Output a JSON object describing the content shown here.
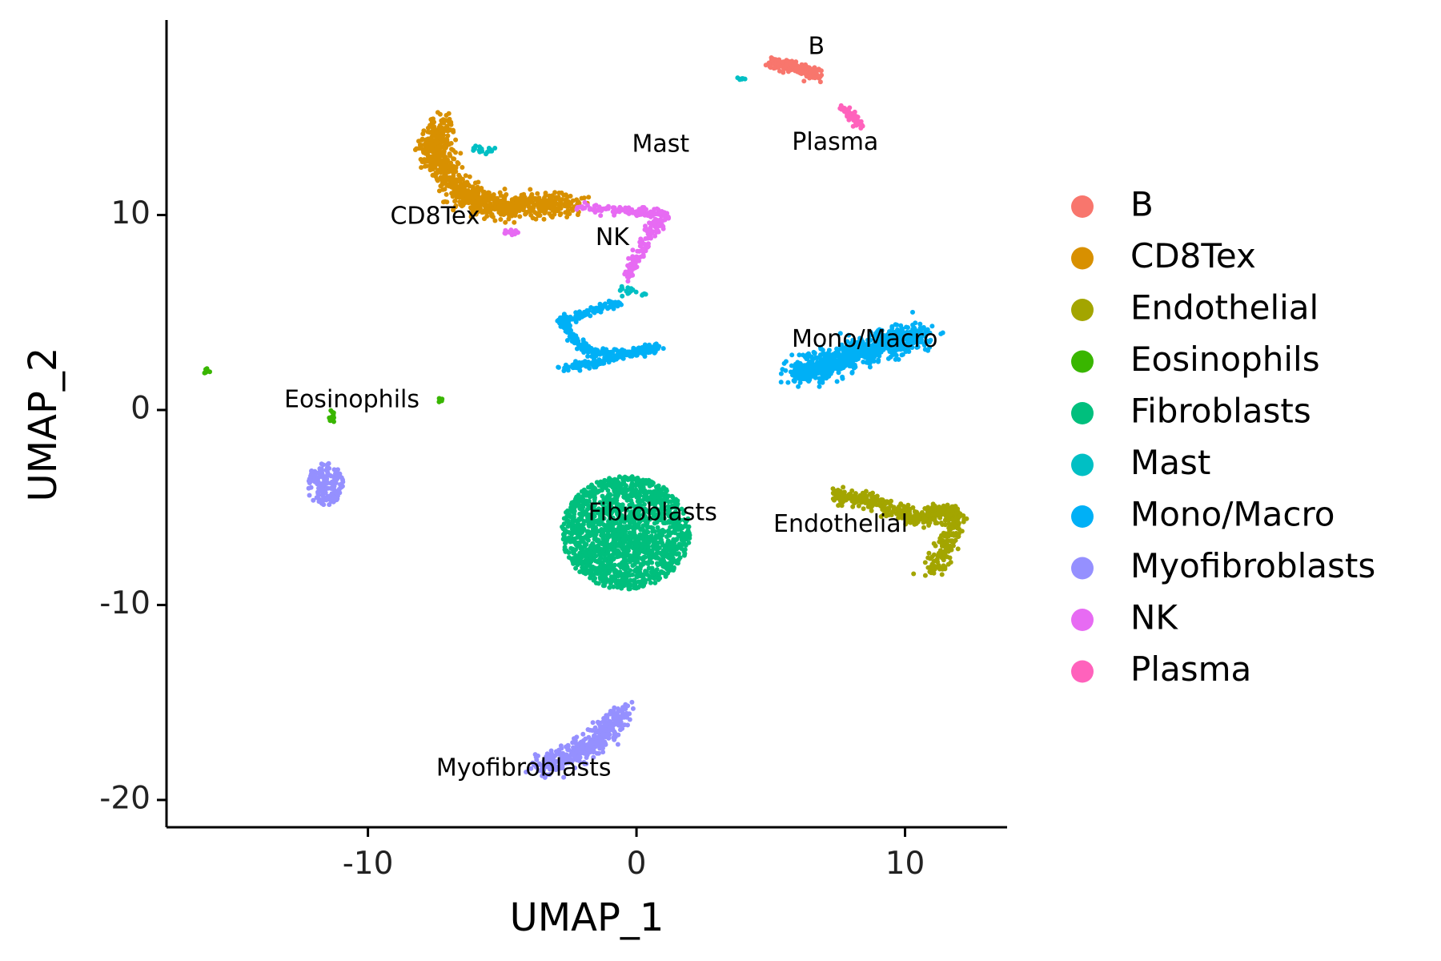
{
  "chart_data": {
    "type": "scatter",
    "title": "",
    "xlabel": "UMAP_1",
    "ylabel": "UMAP_2",
    "xlim": [
      -17.5,
      13.8
    ],
    "ylim": [
      -21.4,
      20.0
    ],
    "xticks": [
      -10,
      0,
      10
    ],
    "yticks": [
      -20,
      -10,
      0,
      10
    ],
    "grid": false,
    "legend_position": "right",
    "series": [
      {
        "name": "B",
        "color": "#F8766D"
      },
      {
        "name": "CD8Tex",
        "color": "#D89000"
      },
      {
        "name": "Endothelial",
        "color": "#A3A500"
      },
      {
        "name": "Eosinophils",
        "color": "#39B600"
      },
      {
        "name": "Fibroblasts",
        "color": "#00BF7D"
      },
      {
        "name": "Mast",
        "color": "#00BFC4"
      },
      {
        "name": "Mono/Macro",
        "color": "#00B0F6"
      },
      {
        "name": "Myofibroblasts",
        "color": "#9590FF"
      },
      {
        "name": "NK",
        "color": "#E76BF3"
      },
      {
        "name": "Plasma",
        "color": "#FF62BC"
      }
    ],
    "clusters": [
      {
        "series": "Fibroblasts",
        "shape": "ellipse",
        "cx": -0.4,
        "cy": -6.3,
        "rx": 2.4,
        "ry": 2.9,
        "n": 1600
      },
      {
        "series": "Myofibroblasts",
        "shape": "path",
        "points": [
          [
            -0.6,
            -15.5
          ],
          [
            -1.2,
            -16.7
          ],
          [
            -2.3,
            -17.6
          ],
          [
            -3.6,
            -18.4
          ]
        ],
        "spread": 0.55,
        "n": 420
      },
      {
        "series": "Myofibroblasts",
        "shape": "ellipse",
        "cx": -11.6,
        "cy": -3.8,
        "rx": 0.7,
        "ry": 1.1,
        "n": 160
      },
      {
        "series": "Eosinophils",
        "shape": "path",
        "points": [
          [
            -11.3,
            -0.1
          ],
          [
            -11.4,
            -0.6
          ]
        ],
        "spread": 0.12,
        "n": 16
      },
      {
        "series": "Eosinophils",
        "shape": "ellipse",
        "cx": -16.0,
        "cy": 2.0,
        "rx": 0.14,
        "ry": 0.18,
        "n": 8
      },
      {
        "series": "Eosinophils",
        "shape": "ellipse",
        "cx": -7.3,
        "cy": 0.5,
        "rx": 0.14,
        "ry": 0.1,
        "n": 6
      },
      {
        "series": "Mono/Macro",
        "shape": "path",
        "points": [
          [
            6.0,
            1.9
          ],
          [
            7.5,
            2.5
          ],
          [
            9.0,
            3.3
          ],
          [
            10.6,
            3.8
          ]
        ],
        "spread": 0.65,
        "n": 900
      },
      {
        "series": "Mono/Macro",
        "shape": "path",
        "points": [
          [
            -2.7,
            2.2
          ],
          [
            -1.5,
            2.4
          ],
          [
            -0.5,
            2.8
          ],
          [
            0.8,
            3.2
          ],
          [
            0.0,
            3.0
          ],
          [
            -1.7,
            2.9
          ],
          [
            -2.3,
            3.6
          ],
          [
            -2.8,
            4.6
          ],
          [
            -1.8,
            5.0
          ],
          [
            -0.6,
            5.5
          ]
        ],
        "spread": 0.22,
        "n": 400
      },
      {
        "series": "Endothelial",
        "shape": "path",
        "points": [
          [
            7.5,
            -4.4
          ],
          [
            8.6,
            -4.6
          ],
          [
            9.8,
            -5.3
          ],
          [
            10.7,
            -5.6
          ],
          [
            11.4,
            -5.2
          ],
          [
            11.9,
            -5.3
          ],
          [
            11.6,
            -6.8
          ],
          [
            11.0,
            -8.4
          ]
        ],
        "spread": 0.4,
        "n": 520
      },
      {
        "series": "CD8Tex",
        "shape": "path",
        "points": [
          [
            -7.2,
            14.8
          ],
          [
            -7.6,
            13.6
          ],
          [
            -7.3,
            12.5
          ],
          [
            -6.6,
            11.3
          ],
          [
            -5.8,
            10.6
          ],
          [
            -4.8,
            10.4
          ],
          [
            -3.6,
            10.5
          ],
          [
            -2.5,
            10.6
          ]
        ],
        "spread": 0.6,
        "n": 900
      },
      {
        "series": "NK",
        "shape": "path",
        "points": [
          [
            -2.2,
            10.4
          ],
          [
            -1.0,
            10.3
          ],
          [
            0.2,
            10.2
          ],
          [
            1.1,
            10.0
          ],
          [
            0.6,
            9.3
          ],
          [
            0.3,
            8.3
          ],
          [
            -0.2,
            7.4
          ],
          [
            -0.3,
            6.8
          ]
        ],
        "spread": 0.25,
        "n": 240
      },
      {
        "series": "NK",
        "shape": "ellipse",
        "cx": -4.7,
        "cy": 9.1,
        "rx": 0.3,
        "ry": 0.15,
        "n": 12
      },
      {
        "series": "Mast",
        "shape": "path",
        "points": [
          [
            -6.2,
            13.5
          ],
          [
            -5.3,
            13.2
          ]
        ],
        "spread": 0.15,
        "n": 20
      },
      {
        "series": "Mast",
        "shape": "path",
        "points": [
          [
            -0.6,
            6.2
          ],
          [
            0.3,
            5.9
          ]
        ],
        "spread": 0.2,
        "n": 18
      },
      {
        "series": "Mast",
        "shape": "ellipse",
        "cx": 3.9,
        "cy": 17.0,
        "rx": 0.15,
        "ry": 0.12,
        "n": 6
      },
      {
        "series": "B",
        "shape": "path",
        "points": [
          [
            5.0,
            17.8
          ],
          [
            6.0,
            17.6
          ],
          [
            6.7,
            17.1
          ]
        ],
        "spread": 0.28,
        "n": 200
      },
      {
        "series": "Plasma",
        "shape": "path",
        "points": [
          [
            7.6,
            15.6
          ],
          [
            8.0,
            15.1
          ],
          [
            8.3,
            14.6
          ]
        ],
        "spread": 0.2,
        "n": 50
      }
    ],
    "annotations": [
      {
        "text": "B",
        "x": 6.7,
        "y": 18.6
      },
      {
        "text": "Mast",
        "x": 0.9,
        "y": 13.6
      },
      {
        "text": "Plasma",
        "x": 7.4,
        "y": 13.7
      },
      {
        "text": "CD8Tex",
        "x": -7.5,
        "y": 9.9
      },
      {
        "text": "NK",
        "x": -0.9,
        "y": 8.8
      },
      {
        "text": "Mono/Macro",
        "x": 8.5,
        "y": 3.6
      },
      {
        "text": "Eosinophils",
        "x": -10.6,
        "y": 0.5
      },
      {
        "text": "Fibroblasts",
        "x": 0.6,
        "y": -5.3
      },
      {
        "text": "Endothelial",
        "x": 7.6,
        "y": -5.9
      },
      {
        "text": "Myofibroblasts",
        "x": -4.2,
        "y": -18.4
      }
    ]
  }
}
